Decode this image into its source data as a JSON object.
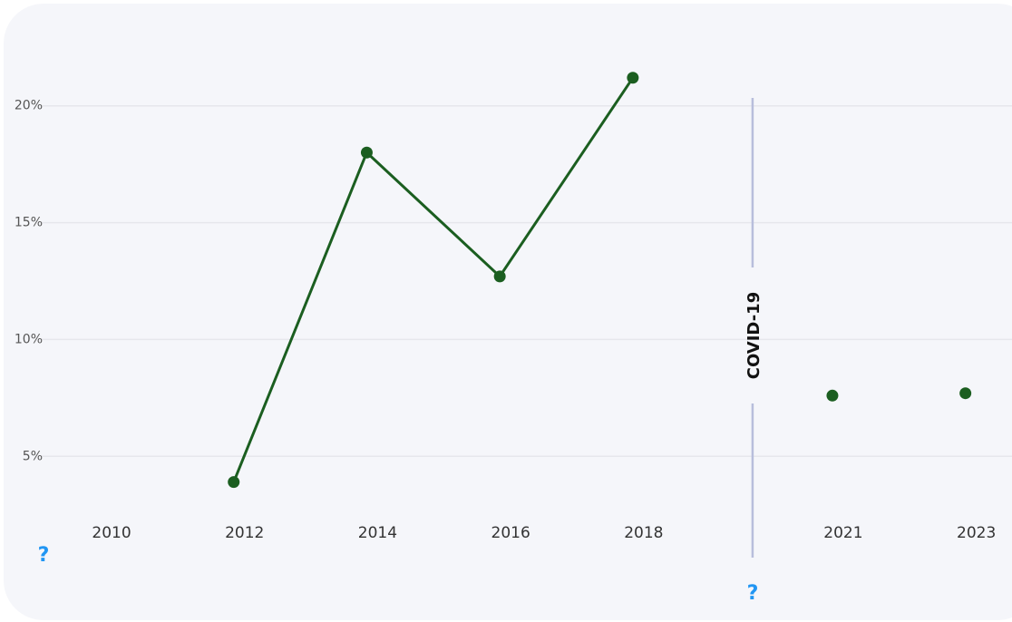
{
  "chart_data": {
    "type": "line",
    "xlim": [
      2009.1,
      2023.7
    ],
    "xticks": [
      2010,
      2012,
      2014,
      2016,
      2018,
      2021,
      2023
    ],
    "ylim": [
      2.8,
      22.2
    ],
    "yticks": [
      {
        "value": 5,
        "label": "5%"
      },
      {
        "value": 10,
        "label": "10%"
      },
      {
        "value": 15,
        "label": "15%"
      },
      {
        "value": 20,
        "label": "20%"
      }
    ],
    "grid": true,
    "series": [
      {
        "color": "#1b5e20",
        "x": [
          2012,
          2014,
          2016,
          2018
        ],
        "values": [
          3.9,
          18.0,
          12.7,
          21.2
        ],
        "line": true
      },
      {
        "color": "#1b5e20",
        "x": [
          2021,
          2023
        ],
        "values": [
          7.6,
          7.7
        ],
        "line": false
      }
    ],
    "annotations": [
      {
        "text": "COVID-19",
        "x": 2019.8
      }
    ],
    "help_icons": [
      "?",
      "?"
    ]
  }
}
